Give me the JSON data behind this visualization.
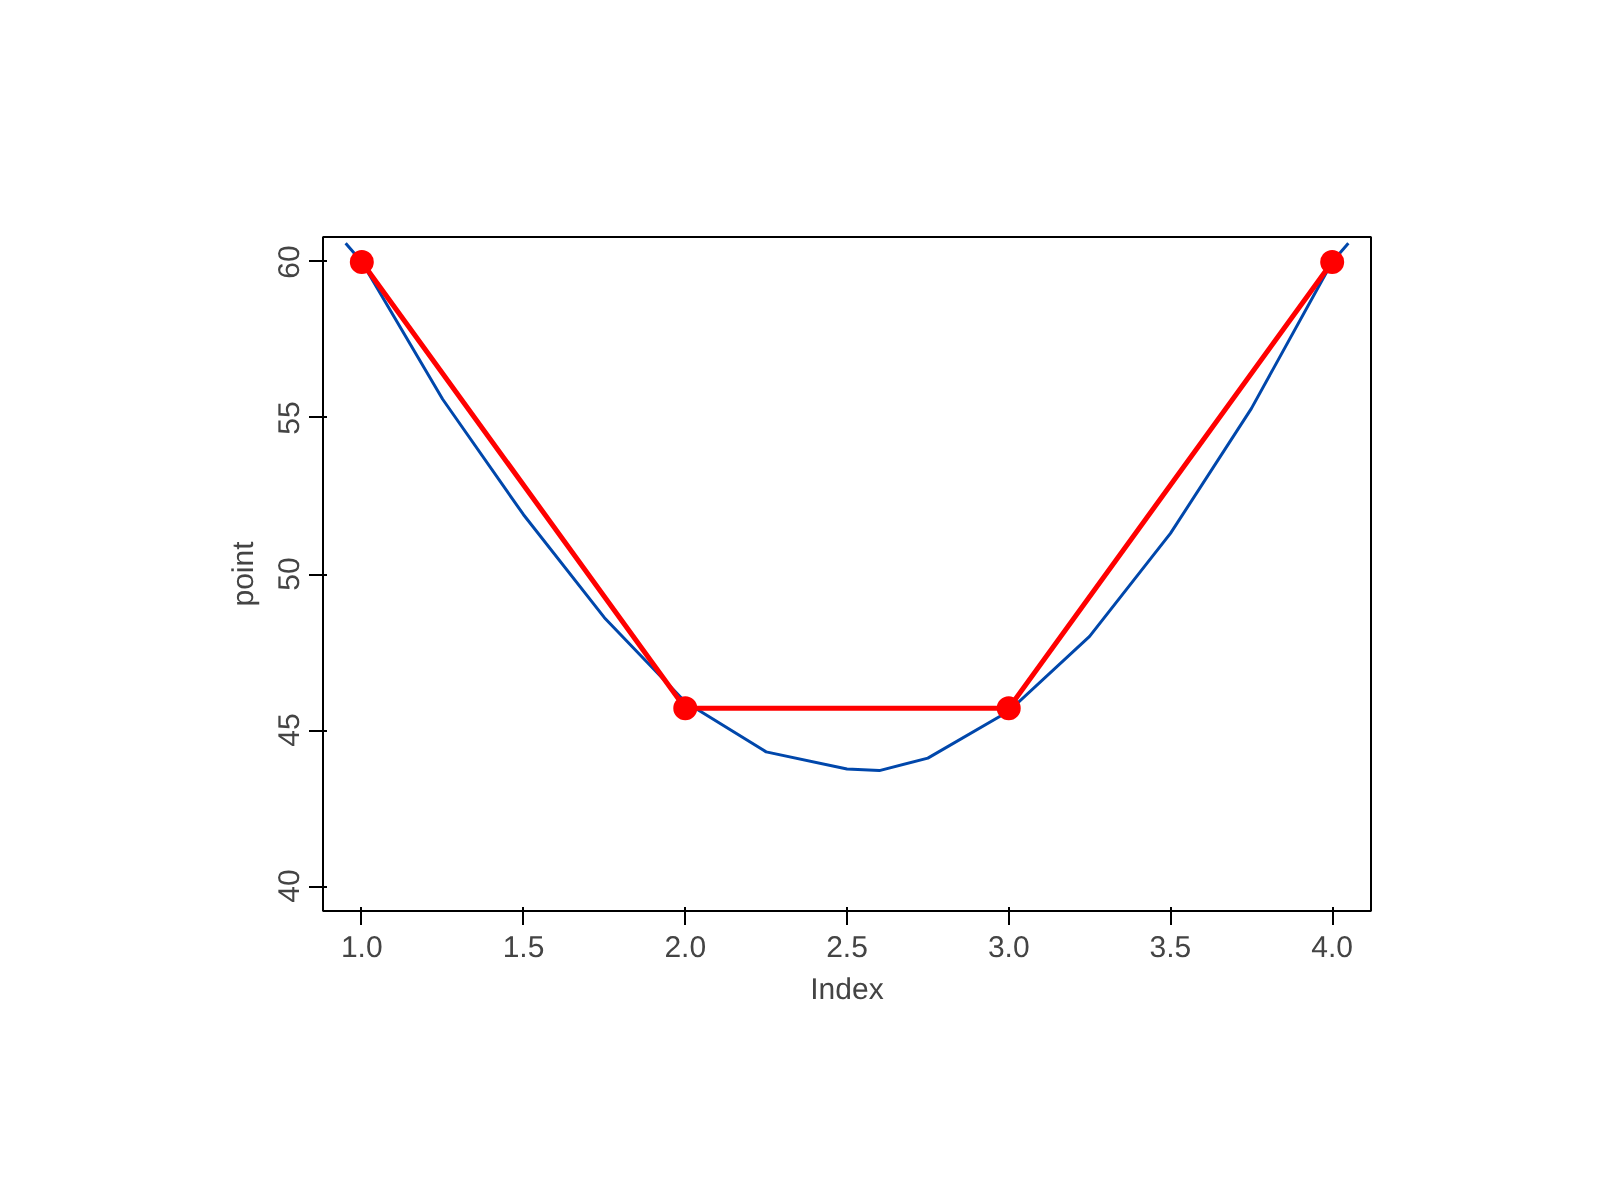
{
  "chart_data": {
    "type": "line",
    "xlabel": "Index",
    "ylabel": "point",
    "xlim": [
      0.88,
      4.12
    ],
    "ylim": [
      39.2,
      60.8
    ],
    "xticks": [
      {
        "value": 1,
        "label": "1.0"
      },
      {
        "value": 1.5,
        "label": "1.5"
      },
      {
        "value": 2,
        "label": "2.0"
      },
      {
        "value": 2.5,
        "label": "2.5"
      },
      {
        "value": 3,
        "label": "3.0"
      },
      {
        "value": 3.5,
        "label": "3.5"
      },
      {
        "value": 4,
        "label": "4.0"
      }
    ],
    "yticks": [
      40,
      45,
      50,
      55,
      60
    ],
    "grid": false,
    "series": [
      {
        "color": "#0047ab",
        "marker": "none",
        "x": [
          0.95,
          1,
          1.25,
          1.5,
          1.75,
          2,
          2.25,
          2.5,
          2.6,
          2.75,
          3,
          3.25,
          3.5,
          3.75,
          4,
          4.05
        ],
        "values": [
          60.6,
          60,
          55.6,
          51.9,
          48.6,
          45.9,
          44.3,
          43.75,
          43.7,
          44.1,
          45.6,
          48.0,
          51.3,
          55.3,
          60.0,
          60.6
        ]
      },
      {
        "color": "#ff0000",
        "marker": "circle",
        "x": [
          1,
          2,
          3,
          4
        ],
        "values": [
          60,
          45.7,
          45.7,
          60
        ]
      }
    ]
  }
}
